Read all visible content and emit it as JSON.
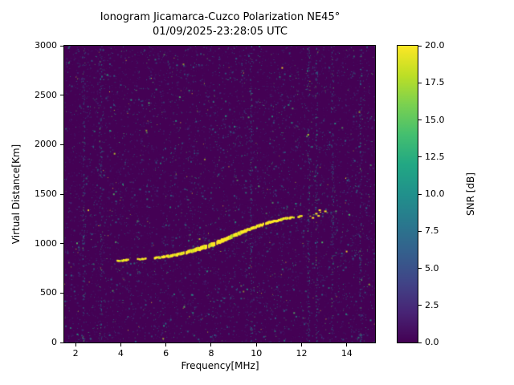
{
  "chart_data": {
    "type": "heatmap",
    "title": "Ionogram Jicamarca-Cuzco Polarization NE45°",
    "subtitle": "01/09/2025-23:28:05 UTC",
    "xlabel": "Frequency[MHz]",
    "ylabel": "Virtual Distance[Km]",
    "xlim": [
      1.5,
      15.25
    ],
    "ylim": [
      0,
      3000
    ],
    "x_ticks": [
      2,
      4,
      6,
      8,
      10,
      12,
      14
    ],
    "x_tick_labels": [
      "2",
      "4",
      "6",
      "8",
      "10",
      "12",
      "14"
    ],
    "y_ticks": [
      0,
      500,
      1000,
      1500,
      2000,
      2500,
      3000
    ],
    "y_tick_labels": [
      "0",
      "500",
      "1000",
      "1500",
      "2000",
      "2500",
      "3000"
    ],
    "background_color": "#440154",
    "noise_seed": 1337,
    "noise_layers": [
      {
        "color": "#46246e",
        "count": 3200,
        "alpha": 0.5
      },
      {
        "color": "#414487",
        "count": 2300,
        "alpha": 0.6
      },
      {
        "color": "#2a788e",
        "count": 1900,
        "alpha": 0.8
      },
      {
        "color": "#22a884",
        "count": 650,
        "alpha": 0.85
      },
      {
        "color": "#54c568",
        "count": 230,
        "alpha": 0.9
      },
      {
        "color": "#bddf26",
        "count": 60,
        "alpha": 0.95
      },
      {
        "color": "#fde725",
        "count": 45,
        "alpha": 0.95
      }
    ],
    "streak_freqs": [
      2.35,
      3.1,
      9.75,
      12.3,
      12.65,
      13.35,
      14.6
    ],
    "echo_trace": {
      "color": "#fde725",
      "alt_color": "#bddf26",
      "gap_chance": 0.12,
      "segments": [
        [
          [
            3.85,
            826,
            2.4
          ],
          [
            4.05,
            829,
            2.4
          ],
          [
            4.25,
            832,
            2.4
          ],
          [
            4.4,
            834,
            2.2
          ]
        ],
        [
          [
            4.75,
            840,
            2.4
          ],
          [
            4.95,
            843,
            2.4
          ],
          [
            5.1,
            846,
            2.2
          ]
        ],
        [
          [
            5.5,
            853,
            2.8
          ],
          [
            5.7,
            858,
            2.8
          ],
          [
            5.9,
            864,
            3
          ],
          [
            6.1,
            871,
            3
          ],
          [
            6.3,
            879,
            3.2
          ],
          [
            6.5,
            888,
            3.4
          ],
          [
            6.7,
            898,
            3.6
          ],
          [
            6.9,
            909,
            3.8
          ],
          [
            7.1,
            921,
            4.2
          ],
          [
            7.3,
            934,
            4.6
          ],
          [
            7.5,
            948,
            5
          ],
          [
            7.7,
            963,
            5
          ],
          [
            7.9,
            979,
            5
          ],
          [
            8.1,
            996,
            5
          ],
          [
            8.3,
            1014,
            5
          ],
          [
            8.5,
            1032,
            4.8
          ],
          [
            8.7,
            1051,
            4.6
          ],
          [
            8.9,
            1070,
            4.4
          ],
          [
            9.1,
            1089,
            4.2
          ],
          [
            9.3,
            1108,
            4
          ],
          [
            9.5,
            1127,
            3.8
          ],
          [
            9.7,
            1145,
            3.6
          ],
          [
            9.9,
            1162,
            3.4
          ],
          [
            10.1,
            1178,
            3.4
          ],
          [
            10.3,
            1193,
            3.2
          ],
          [
            10.5,
            1207,
            3.2
          ],
          [
            10.7,
            1220,
            3
          ],
          [
            10.9,
            1232,
            3
          ],
          [
            11.1,
            1243,
            2.8
          ],
          [
            11.3,
            1252,
            2.8
          ],
          [
            11.5,
            1260,
            2.6
          ],
          [
            11.65,
            1265,
            2.4
          ]
        ],
        [
          [
            11.85,
            1272,
            2.2
          ],
          [
            12.0,
            1277,
            2
          ]
        ]
      ]
    },
    "scatter_points": [
      [
        12.35,
        1282
      ],
      [
        12.5,
        1295,
        "#54c568"
      ],
      [
        12.6,
        1310
      ],
      [
        12.7,
        1288
      ],
      [
        12.8,
        1322
      ],
      [
        12.9,
        1305,
        "#2a788e"
      ],
      [
        13.0,
        1334
      ],
      [
        13.1,
        1316,
        "#54c568"
      ],
      [
        12.45,
        1268
      ],
      [
        12.75,
        1345
      ]
    ],
    "colorbar": {
      "label": "SNR [dB]",
      "min": 0,
      "max": 20,
      "ticks": [
        0,
        2.5,
        5,
        7.5,
        10,
        12.5,
        15,
        17.5,
        20
      ],
      "tick_labels": [
        "0.0",
        "2.5",
        "5.0",
        "7.5",
        "10.0",
        "12.5",
        "15.0",
        "17.5",
        "20.0"
      ],
      "stops": [
        [
          0.0,
          "#440154"
        ],
        [
          0.1,
          "#482475"
        ],
        [
          0.2,
          "#414487"
        ],
        [
          0.3,
          "#355f8d"
        ],
        [
          0.4,
          "#2a788e"
        ],
        [
          0.5,
          "#21918c"
        ],
        [
          0.6,
          "#22a884"
        ],
        [
          0.7,
          "#44bf70"
        ],
        [
          0.8,
          "#7ad151"
        ],
        [
          0.9,
          "#bddf26"
        ],
        [
          1.0,
          "#fde725"
        ]
      ]
    }
  }
}
